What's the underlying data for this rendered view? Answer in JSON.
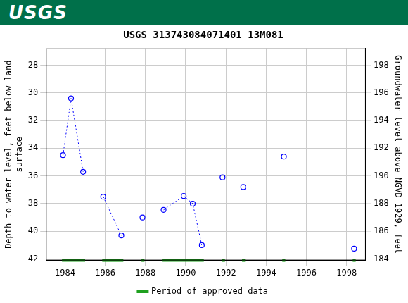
{
  "logo": "USGS",
  "chart_data": {
    "type": "scatter",
    "title": "USGS 313743084071401 13M081",
    "ylabel": [
      "Depth to water level, feet below land",
      "surface"
    ],
    "y2label": "Groundwater level above NGVD 1929, feet",
    "xlim": [
      1983.05,
      1998.95
    ],
    "xticks": [
      1984,
      1986,
      1988,
      1990,
      1992,
      1994,
      1996,
      1998
    ],
    "ylim": [
      42.1,
      26.8
    ],
    "yticks": [
      28,
      30,
      32,
      34,
      36,
      38,
      40,
      42
    ],
    "y2lim": [
      183.9,
      199.2
    ],
    "y2ticks": [
      184,
      186,
      188,
      190,
      192,
      194,
      196,
      198
    ],
    "grid": true,
    "legend": "bottom",
    "series": [
      {
        "color": "#0000ff",
        "marker": "circle-open",
        "line_style": "dotted",
        "x": [
          1983.9,
          1984.3,
          1984.9,
          null,
          1985.9,
          1986.8,
          null,
          1987.85,
          null,
          1988.9,
          1989.9,
          1990.35,
          1990.8,
          null,
          1991.83,
          null,
          1992.86,
          null,
          1994.88,
          null,
          1998.37
        ],
        "values": [
          34.5,
          30.4,
          35.7,
          null,
          37.5,
          40.3,
          null,
          39.0,
          null,
          38.45,
          37.45,
          38.0,
          41.0,
          null,
          36.1,
          null,
          36.8,
          null,
          34.6,
          null,
          41.25
        ]
      },
      {
        "name": "Period of approved data",
        "color": "#1fa01f",
        "type": "period",
        "periods": [
          [
            1983.85,
            1985.0
          ],
          [
            1985.85,
            1986.9
          ],
          [
            1987.8,
            1987.95
          ],
          [
            1988.85,
            1990.9
          ],
          [
            1991.8,
            1991.95
          ],
          [
            1992.8,
            1992.95
          ],
          [
            1994.8,
            1994.95
          ],
          [
            1998.3,
            1998.45
          ]
        ]
      }
    ]
  }
}
